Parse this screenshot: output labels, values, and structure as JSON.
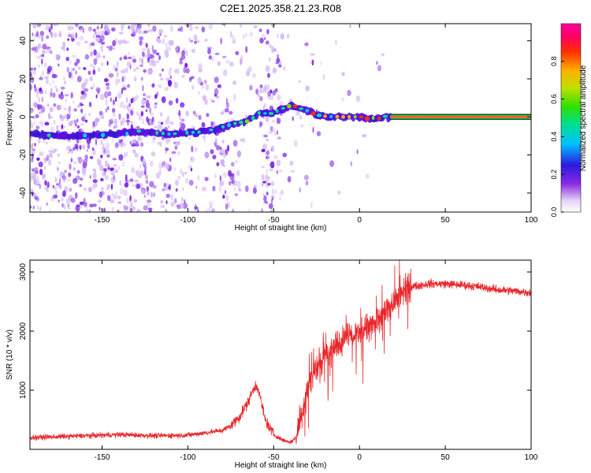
{
  "title": "C2E1.2025.358.21.23.R08",
  "colors": {
    "snr_line": "#e8262a",
    "axis": "#000000",
    "background": "#ffffff"
  },
  "chart_data": [
    {
      "type": "heatmap",
      "name": "spectrogram",
      "xlabel": "Height of straight line (km)",
      "ylabel": "Frequency (Hz)",
      "xlim": [
        -192,
        100
      ],
      "ylim": [
        -50,
        49
      ],
      "x_ticks": [
        -150,
        -100,
        -50,
        0,
        50,
        100
      ],
      "y_ticks": [
        -40,
        -20,
        0,
        20,
        40
      ],
      "grid": false,
      "description_of_trace": "frequency centroid of strongest returns vs height",
      "trace": {
        "x": [
          -190,
          -175,
          -160,
          -145,
          -130,
          -110,
          -95,
          -85,
          -75,
          -65,
          -58,
          -50,
          -45,
          -40,
          -35,
          -30,
          -25,
          -20,
          -10,
          0,
          5,
          10,
          15,
          20,
          40,
          60,
          80,
          100
        ],
        "y": [
          -9,
          -10,
          -10,
          -9,
          -8,
          -9,
          -8,
          -7,
          -4,
          -2,
          2,
          2,
          4,
          6,
          5,
          3,
          1,
          0,
          0,
          0,
          -1,
          -1,
          0,
          0,
          0,
          0,
          0,
          0
        ]
      },
      "colorbar": {
        "label": "Normalized spectral amplitude",
        "range": [
          0,
          1
        ],
        "ticks": [
          "0.0",
          "0.2",
          "0.4",
          "0.6",
          "0.8"
        ],
        "tick_values": [
          0.0,
          0.2,
          0.4,
          0.6,
          0.8
        ]
      }
    },
    {
      "type": "line",
      "name": "snr",
      "xlabel": "Height of straight line (km)",
      "ylabel": "SNR (10 * v/v)",
      "xlim": [
        -192,
        100
      ],
      "ylim": [
        0,
        3200
      ],
      "x_ticks": [
        -150,
        -100,
        -50,
        0,
        50,
        100
      ],
      "y_ticks": [
        1000,
        2000,
        3000
      ],
      "grid": false,
      "series": [
        {
          "name": "SNR",
          "x": [
            -192,
            -180,
            -160,
            -140,
            -120,
            -100,
            -90,
            -80,
            -75,
            -70,
            -65,
            -62,
            -60,
            -58,
            -55,
            -50,
            -45,
            -40,
            -37,
            -35,
            -32,
            -30,
            -25,
            -20,
            -15,
            -10,
            -5,
            0,
            5,
            10,
            15,
            20,
            25,
            30,
            40,
            50,
            60,
            70,
            80,
            90,
            100
          ],
          "y": [
            200,
            210,
            230,
            250,
            230,
            240,
            280,
            320,
            400,
            550,
            800,
            1000,
            1100,
            900,
            500,
            250,
            160,
            120,
            200,
            450,
            800,
            1100,
            1400,
            1600,
            1700,
            1850,
            2000,
            1950,
            2100,
            2150,
            2300,
            2500,
            2650,
            2750,
            2800,
            2800,
            2780,
            2750,
            2700,
            2680,
            2650
          ]
        }
      ]
    }
  ]
}
